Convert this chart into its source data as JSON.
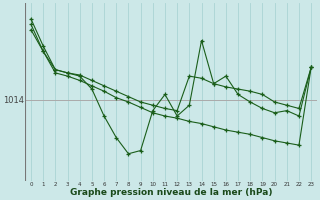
{
  "title": "Graphe pression niveau de la mer (hPa)",
  "background_color": "#cce8e8",
  "line_color": "#1a5e1a",
  "grid_color_v": "#aad4d4",
  "grid_color_h": "#aaaaaa",
  "ytick_value": 1014,
  "x_hours": [
    0,
    1,
    2,
    3,
    4,
    5,
    6,
    7,
    8,
    9,
    10,
    11,
    12,
    13,
    14,
    15,
    16,
    17,
    18,
    19,
    20,
    21,
    22,
    23
  ],
  "series1": [
    1021.5,
    1019.0,
    1016.8,
    1016.5,
    1016.2,
    1015.0,
    1012.5,
    1010.5,
    1009.0,
    1009.3,
    1013.0,
    1014.5,
    1012.5,
    1013.5,
    1019.5,
    1015.5,
    1016.2,
    1014.5,
    1013.8,
    1013.2,
    1012.8,
    1013.0,
    1012.5,
    1017.0
  ],
  "series2": [
    1020.5,
    1018.5,
    1016.8,
    1016.5,
    1016.3,
    1015.8,
    1015.3,
    1014.8,
    1014.3,
    1013.8,
    1013.5,
    1013.2,
    1013.0,
    1016.2,
    1016.0,
    1015.5,
    1015.2,
    1015.0,
    1014.8,
    1014.5,
    1013.8,
    1013.5,
    1013.2,
    1017.0
  ],
  "series3": [
    1021.0,
    1018.5,
    1016.5,
    1016.2,
    1015.8,
    1015.3,
    1014.8,
    1014.2,
    1013.8,
    1013.3,
    1012.8,
    1012.5,
    1012.3,
    1012.0,
    1011.8,
    1011.5,
    1011.2,
    1011.0,
    1010.8,
    1010.5,
    1010.2,
    1010.0,
    1009.8,
    1017.0
  ],
  "ylim_min": 1006.5,
  "ylim_max": 1023.0
}
